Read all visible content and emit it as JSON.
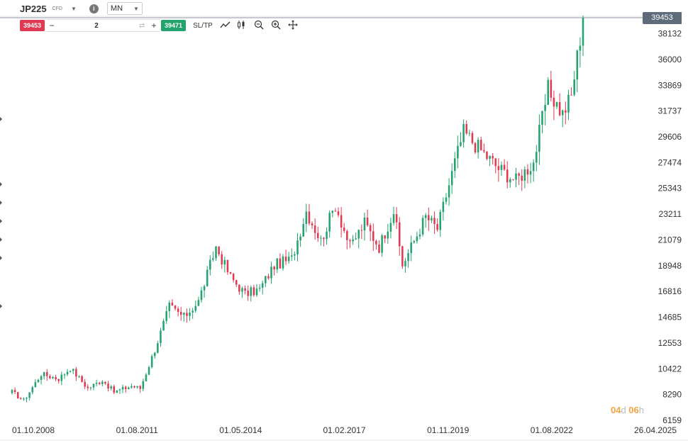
{
  "header": {
    "symbol": "JP225",
    "symbol_type": "CFD",
    "info_icon": "info-icon",
    "timeframe": "MN"
  },
  "trade": {
    "sell_price": "39453",
    "quantity": "2",
    "buy_price": "39471",
    "sltp_label": "SL/TP",
    "qty_minus": "−",
    "qty_plus": "+"
  },
  "colors": {
    "up": "#23a36e",
    "down": "#e03a52",
    "last_price_label": "#5d6b7a",
    "countdown": "#f0a341"
  },
  "countdown": {
    "days": "04",
    "days_unit": "d",
    "hours": "06",
    "hours_unit": "h"
  },
  "chart_data": {
    "type": "candlestick",
    "symbol": "JP225",
    "timeframe": "MN",
    "last_price": "39453",
    "y_ticks": [
      "38132",
      "36000",
      "33869",
      "31737",
      "29606",
      "27474",
      "25343",
      "23211",
      "21079",
      "18948",
      "16816",
      "14685",
      "12553",
      "10422",
      "8290",
      "6159"
    ],
    "x_ticks": [
      "01.10.2008",
      "01.08.2011",
      "01.05.2014",
      "01.02.2017",
      "01.11.2019",
      "01.08.2022",
      "26.04.2025"
    ],
    "ylim": [
      6159,
      39453
    ],
    "grid": false,
    "anchors": [
      [
        0,
        8500
      ],
      [
        4,
        7800
      ],
      [
        10,
        10000
      ],
      [
        16,
        9600
      ],
      [
        20,
        10500
      ],
      [
        26,
        8800
      ],
      [
        31,
        9500
      ],
      [
        35,
        8500
      ],
      [
        41,
        9000
      ],
      [
        44,
        8800
      ],
      [
        49,
        12000
      ],
      [
        54,
        15600
      ],
      [
        59,
        14700
      ],
      [
        64,
        16000
      ],
      [
        70,
        20500
      ],
      [
        75,
        18000
      ],
      [
        80,
        16600
      ],
      [
        85,
        17000
      ],
      [
        90,
        19000
      ],
      [
        96,
        19500
      ],
      [
        101,
        23500
      ],
      [
        106,
        21000
      ],
      [
        111,
        24000
      ],
      [
        116,
        20500
      ],
      [
        121,
        22500
      ],
      [
        126,
        20500
      ],
      [
        131,
        23500
      ],
      [
        134,
        19000
      ],
      [
        136,
        20000
      ],
      [
        142,
        23000
      ],
      [
        146,
        22000
      ],
      [
        152,
        27500
      ],
      [
        155,
        30000
      ],
      [
        161,
        28500
      ],
      [
        167,
        27000
      ],
      [
        173,
        26000
      ],
      [
        179,
        27500
      ],
      [
        184,
        33500
      ],
      [
        189,
        31500
      ],
      [
        192,
        33000
      ],
      [
        196,
        39453
      ]
    ]
  }
}
